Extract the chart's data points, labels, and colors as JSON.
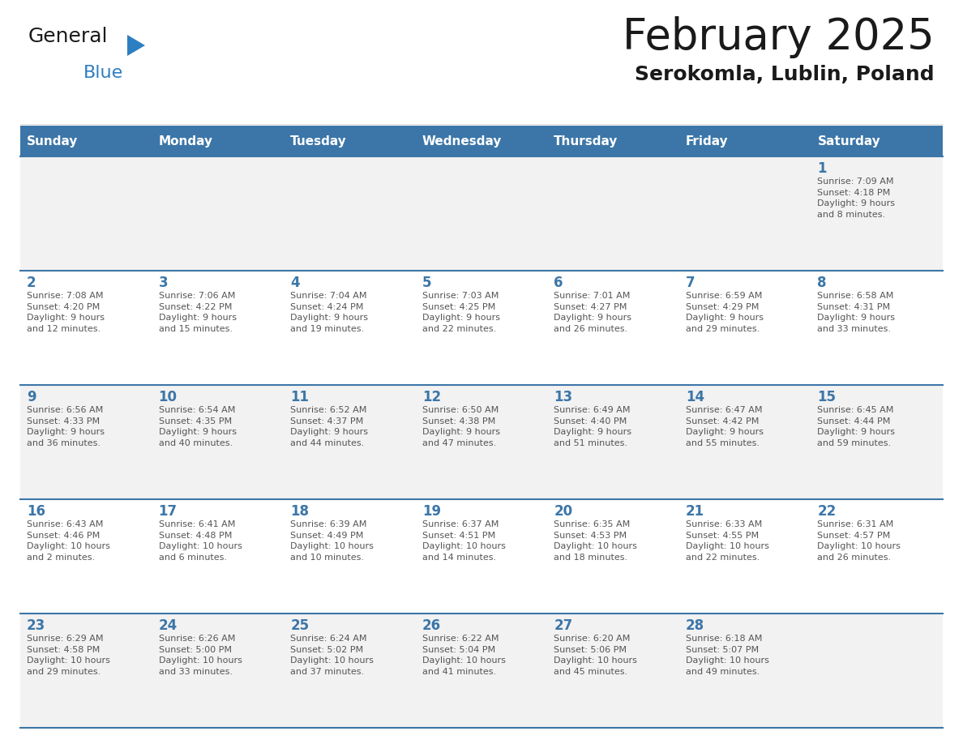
{
  "title": "February 2025",
  "subtitle": "Serokomla, Lublin, Poland",
  "days_of_week": [
    "Sunday",
    "Monday",
    "Tuesday",
    "Wednesday",
    "Thursday",
    "Friday",
    "Saturday"
  ],
  "header_bg": "#3c76a8",
  "header_text": "#ffffff",
  "row_bg_odd": "#f2f2f2",
  "row_bg_even": "#ffffff",
  "separator_color": "#3c76a8",
  "day_number_color": "#3c76a8",
  "info_text_color": "#555555",
  "title_color": "#1a1a1a",
  "subtitle_color": "#1a1a1a",
  "logo_general_color": "#1a1a1a",
  "logo_blue_color": "#2e7ec2",
  "logo_triangle_color": "#2e7ec2",
  "weeks": [
    [
      {
        "day": null,
        "info": null
      },
      {
        "day": null,
        "info": null
      },
      {
        "day": null,
        "info": null
      },
      {
        "day": null,
        "info": null
      },
      {
        "day": null,
        "info": null
      },
      {
        "day": null,
        "info": null
      },
      {
        "day": 1,
        "info": "Sunrise: 7:09 AM\nSunset: 4:18 PM\nDaylight: 9 hours\nand 8 minutes."
      }
    ],
    [
      {
        "day": 2,
        "info": "Sunrise: 7:08 AM\nSunset: 4:20 PM\nDaylight: 9 hours\nand 12 minutes."
      },
      {
        "day": 3,
        "info": "Sunrise: 7:06 AM\nSunset: 4:22 PM\nDaylight: 9 hours\nand 15 minutes."
      },
      {
        "day": 4,
        "info": "Sunrise: 7:04 AM\nSunset: 4:24 PM\nDaylight: 9 hours\nand 19 minutes."
      },
      {
        "day": 5,
        "info": "Sunrise: 7:03 AM\nSunset: 4:25 PM\nDaylight: 9 hours\nand 22 minutes."
      },
      {
        "day": 6,
        "info": "Sunrise: 7:01 AM\nSunset: 4:27 PM\nDaylight: 9 hours\nand 26 minutes."
      },
      {
        "day": 7,
        "info": "Sunrise: 6:59 AM\nSunset: 4:29 PM\nDaylight: 9 hours\nand 29 minutes."
      },
      {
        "day": 8,
        "info": "Sunrise: 6:58 AM\nSunset: 4:31 PM\nDaylight: 9 hours\nand 33 minutes."
      }
    ],
    [
      {
        "day": 9,
        "info": "Sunrise: 6:56 AM\nSunset: 4:33 PM\nDaylight: 9 hours\nand 36 minutes."
      },
      {
        "day": 10,
        "info": "Sunrise: 6:54 AM\nSunset: 4:35 PM\nDaylight: 9 hours\nand 40 minutes."
      },
      {
        "day": 11,
        "info": "Sunrise: 6:52 AM\nSunset: 4:37 PM\nDaylight: 9 hours\nand 44 minutes."
      },
      {
        "day": 12,
        "info": "Sunrise: 6:50 AM\nSunset: 4:38 PM\nDaylight: 9 hours\nand 47 minutes."
      },
      {
        "day": 13,
        "info": "Sunrise: 6:49 AM\nSunset: 4:40 PM\nDaylight: 9 hours\nand 51 minutes."
      },
      {
        "day": 14,
        "info": "Sunrise: 6:47 AM\nSunset: 4:42 PM\nDaylight: 9 hours\nand 55 minutes."
      },
      {
        "day": 15,
        "info": "Sunrise: 6:45 AM\nSunset: 4:44 PM\nDaylight: 9 hours\nand 59 minutes."
      }
    ],
    [
      {
        "day": 16,
        "info": "Sunrise: 6:43 AM\nSunset: 4:46 PM\nDaylight: 10 hours\nand 2 minutes."
      },
      {
        "day": 17,
        "info": "Sunrise: 6:41 AM\nSunset: 4:48 PM\nDaylight: 10 hours\nand 6 minutes."
      },
      {
        "day": 18,
        "info": "Sunrise: 6:39 AM\nSunset: 4:49 PM\nDaylight: 10 hours\nand 10 minutes."
      },
      {
        "day": 19,
        "info": "Sunrise: 6:37 AM\nSunset: 4:51 PM\nDaylight: 10 hours\nand 14 minutes."
      },
      {
        "day": 20,
        "info": "Sunrise: 6:35 AM\nSunset: 4:53 PM\nDaylight: 10 hours\nand 18 minutes."
      },
      {
        "day": 21,
        "info": "Sunrise: 6:33 AM\nSunset: 4:55 PM\nDaylight: 10 hours\nand 22 minutes."
      },
      {
        "day": 22,
        "info": "Sunrise: 6:31 AM\nSunset: 4:57 PM\nDaylight: 10 hours\nand 26 minutes."
      }
    ],
    [
      {
        "day": 23,
        "info": "Sunrise: 6:29 AM\nSunset: 4:58 PM\nDaylight: 10 hours\nand 29 minutes."
      },
      {
        "day": 24,
        "info": "Sunrise: 6:26 AM\nSunset: 5:00 PM\nDaylight: 10 hours\nand 33 minutes."
      },
      {
        "day": 25,
        "info": "Sunrise: 6:24 AM\nSunset: 5:02 PM\nDaylight: 10 hours\nand 37 minutes."
      },
      {
        "day": 26,
        "info": "Sunrise: 6:22 AM\nSunset: 5:04 PM\nDaylight: 10 hours\nand 41 minutes."
      },
      {
        "day": 27,
        "info": "Sunrise: 6:20 AM\nSunset: 5:06 PM\nDaylight: 10 hours\nand 45 minutes."
      },
      {
        "day": 28,
        "info": "Sunrise: 6:18 AM\nSunset: 5:07 PM\nDaylight: 10 hours\nand 49 minutes."
      },
      {
        "day": null,
        "info": null
      }
    ]
  ]
}
